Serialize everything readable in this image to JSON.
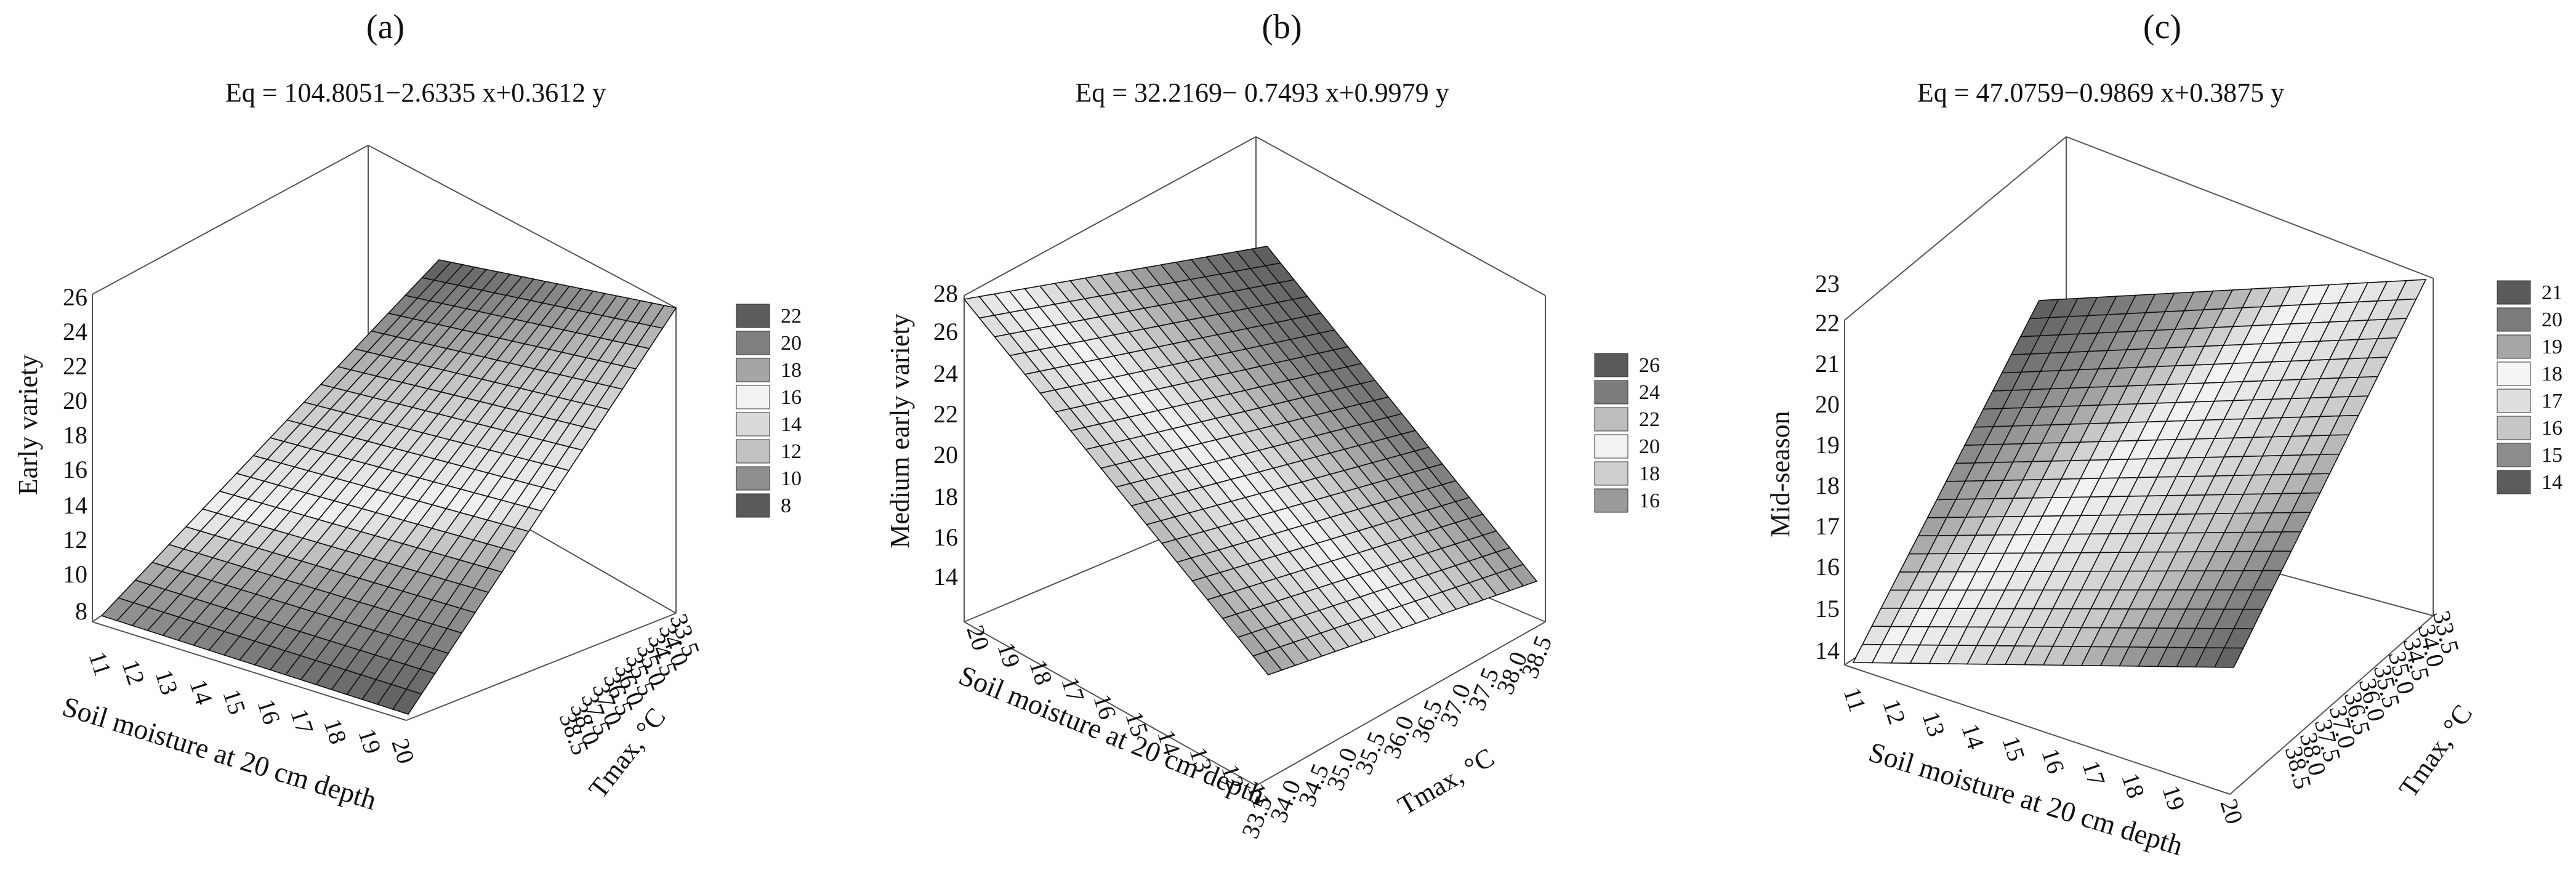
{
  "chart_data": [
    {
      "type": "surface3d",
      "panel_label": "(a)",
      "title": "Eq = 104.8051−2.6335 x+0.3612 y",
      "xlabel": "Tmax, °C",
      "ylabel": "Soil moisture  at  20 cm depth",
      "zlabel": "Early variety",
      "x_ticks": [
        "33.5",
        "34.0",
        "34.5",
        "35.0",
        "35.5",
        "36.0",
        "36.5",
        "37.0",
        "37.5",
        "38.0",
        "38.5"
      ],
      "y_ticks": [
        "11",
        "12",
        "13",
        "14",
        "15",
        "16",
        "17",
        "18",
        "19",
        "20"
      ],
      "z_ticks": [
        "8",
        "10",
        "12",
        "14",
        "16",
        "18",
        "20",
        "22",
        "24",
        "26"
      ],
      "xlim": [
        33.5,
        38.5
      ],
      "ylim": [
        11,
        20
      ],
      "zlim": [
        7,
        26
      ],
      "equation": {
        "intercept": 104.8051,
        "x_coef": -2.6335,
        "y_coef": 0.3612
      },
      "legend_levels": [
        "22",
        "20",
        "18",
        "16",
        "14",
        "12",
        "10",
        "8"
      ],
      "legend_colors": [
        "#5c5c5c",
        "#808080",
        "#a5a5a5",
        "#f2f2f2",
        "#dadada",
        "#c2c2c2",
        "#8e8e8e",
        "#5a5a5a"
      ],
      "legend_position": "right"
    },
    {
      "type": "surface3d",
      "panel_label": "(b)",
      "title": "Eq = 32.2169− 0.7493 x+0.9979 y",
      "xlabel": "Tmax, °C",
      "ylabel": "Soil moisture at 20 cm depth",
      "zlabel": "Medium  early variety",
      "x_ticks": [
        "33.5",
        "34.0",
        "34.5",
        "35.0",
        "35.5",
        "36.0",
        "36.5",
        "37.0",
        "37.5",
        "38.0",
        "38.5"
      ],
      "y_ticks": [
        "20",
        "19",
        "18",
        "17",
        "16",
        "15",
        "14",
        "13",
        "12",
        "11"
      ],
      "z_ticks": [
        "14",
        "16",
        "18",
        "20",
        "22",
        "24",
        "26",
        "28"
      ],
      "xlim": [
        33.5,
        38.5
      ],
      "ylim": [
        11,
        20
      ],
      "zlim": [
        12,
        28
      ],
      "equation": {
        "intercept": 32.2169,
        "x_coef": -0.7493,
        "y_coef": 0.9979
      },
      "legend_levels": [
        "26",
        "24",
        "22",
        "20",
        "18",
        "16"
      ],
      "legend_colors": [
        "#5a5a5a",
        "#7c7c7c",
        "#bdbdbd",
        "#f2f2f2",
        "#cfcfcf",
        "#9a9a9a"
      ],
      "legend_position": "right"
    },
    {
      "type": "surface3d",
      "panel_label": "(c)",
      "title": "Eq =  47.0759−0.9869 x+0.3875  y",
      "xlabel": "Tmax, °C",
      "ylabel": "Soil moisture at 20 cm depth",
      "zlabel": "Mid-season",
      "x_ticks": [
        "33.5",
        "34.0",
        "34.5",
        "35.0",
        "35.5",
        "36.0",
        "36.5",
        "37.0",
        "37.5",
        "38.0",
        "38.5"
      ],
      "y_ticks": [
        "11",
        "12",
        "13",
        "14",
        "15",
        "16",
        "17",
        "18",
        "19",
        "20"
      ],
      "z_ticks": [
        "14",
        "15",
        "16",
        "17",
        "18",
        "19",
        "20",
        "21",
        "22",
        "23"
      ],
      "xlim": [
        33.5,
        38.5
      ],
      "ylim": [
        11,
        20
      ],
      "zlim": [
        13.5,
        23
      ],
      "equation": {
        "intercept": 47.0759,
        "x_coef": -0.9869,
        "y_coef": 0.3875
      },
      "legend_levels": [
        "21",
        "20",
        "19",
        "18",
        "17",
        "16",
        "15",
        "14"
      ],
      "legend_colors": [
        "#5a5a5a",
        "#7c7c7c",
        "#a6a6a6",
        "#f4f4f4",
        "#dedede",
        "#c6c6c6",
        "#8c8c8c",
        "#5c5c5c"
      ],
      "legend_position": "right"
    }
  ]
}
